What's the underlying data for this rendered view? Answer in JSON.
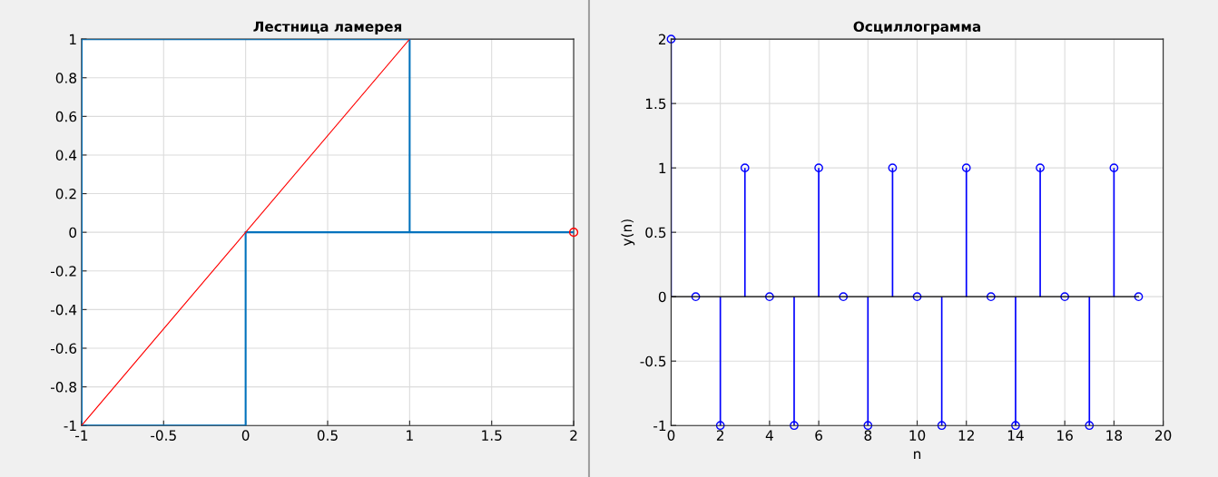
{
  "chart_data": [
    {
      "type": "line",
      "title": "Лестница ламерея",
      "xlim": [
        -1,
        2
      ],
      "xticks": [
        -1,
        -0.5,
        0,
        0.5,
        1,
        1.5,
        2
      ],
      "ylim": [
        -1,
        1
      ],
      "yticks": [
        -1,
        -0.8,
        -0.6,
        -0.4,
        -0.2,
        0,
        0.2,
        0.4,
        0.6,
        0.8,
        1
      ],
      "grid": true,
      "series": [
        {
          "type": "line",
          "color": "#0072bd",
          "x": [
            2,
            0,
            0,
            -1,
            -1,
            1,
            1,
            0
          ],
          "values": [
            0,
            0,
            -1,
            -1,
            1,
            1,
            0,
            0
          ]
        },
        {
          "type": "line",
          "color": "#ff0000",
          "x": [
            -1,
            1
          ],
          "values": [
            -1,
            1
          ]
        },
        {
          "type": "scatter",
          "color": "#ff0000",
          "marker": "circle",
          "x": [
            2
          ],
          "values": [
            0
          ]
        }
      ]
    },
    {
      "type": "lollipop",
      "title": "Осциллограмма",
      "xlabel": "n",
      "ylabel": "y(n)",
      "xlim": [
        0,
        20
      ],
      "xticks": [
        0,
        2,
        4,
        6,
        8,
        10,
        12,
        14,
        16,
        18,
        20
      ],
      "ylim": [
        -1,
        2
      ],
      "yticks": [
        -1,
        -0.5,
        0,
        0.5,
        1,
        1.5,
        2
      ],
      "grid": true,
      "marker": "circle",
      "series": [
        {
          "color": "#0000ff",
          "x": [
            0,
            1,
            2,
            3,
            4,
            5,
            6,
            7,
            8,
            9,
            10,
            11,
            12,
            13,
            14,
            15,
            16,
            17,
            18,
            19
          ],
          "values": [
            2,
            0,
            -1,
            1,
            0,
            -1,
            1,
            0,
            -1,
            1,
            0,
            -1,
            1,
            0,
            -1,
            1,
            0,
            -1,
            1,
            0
          ]
        }
      ]
    }
  ]
}
